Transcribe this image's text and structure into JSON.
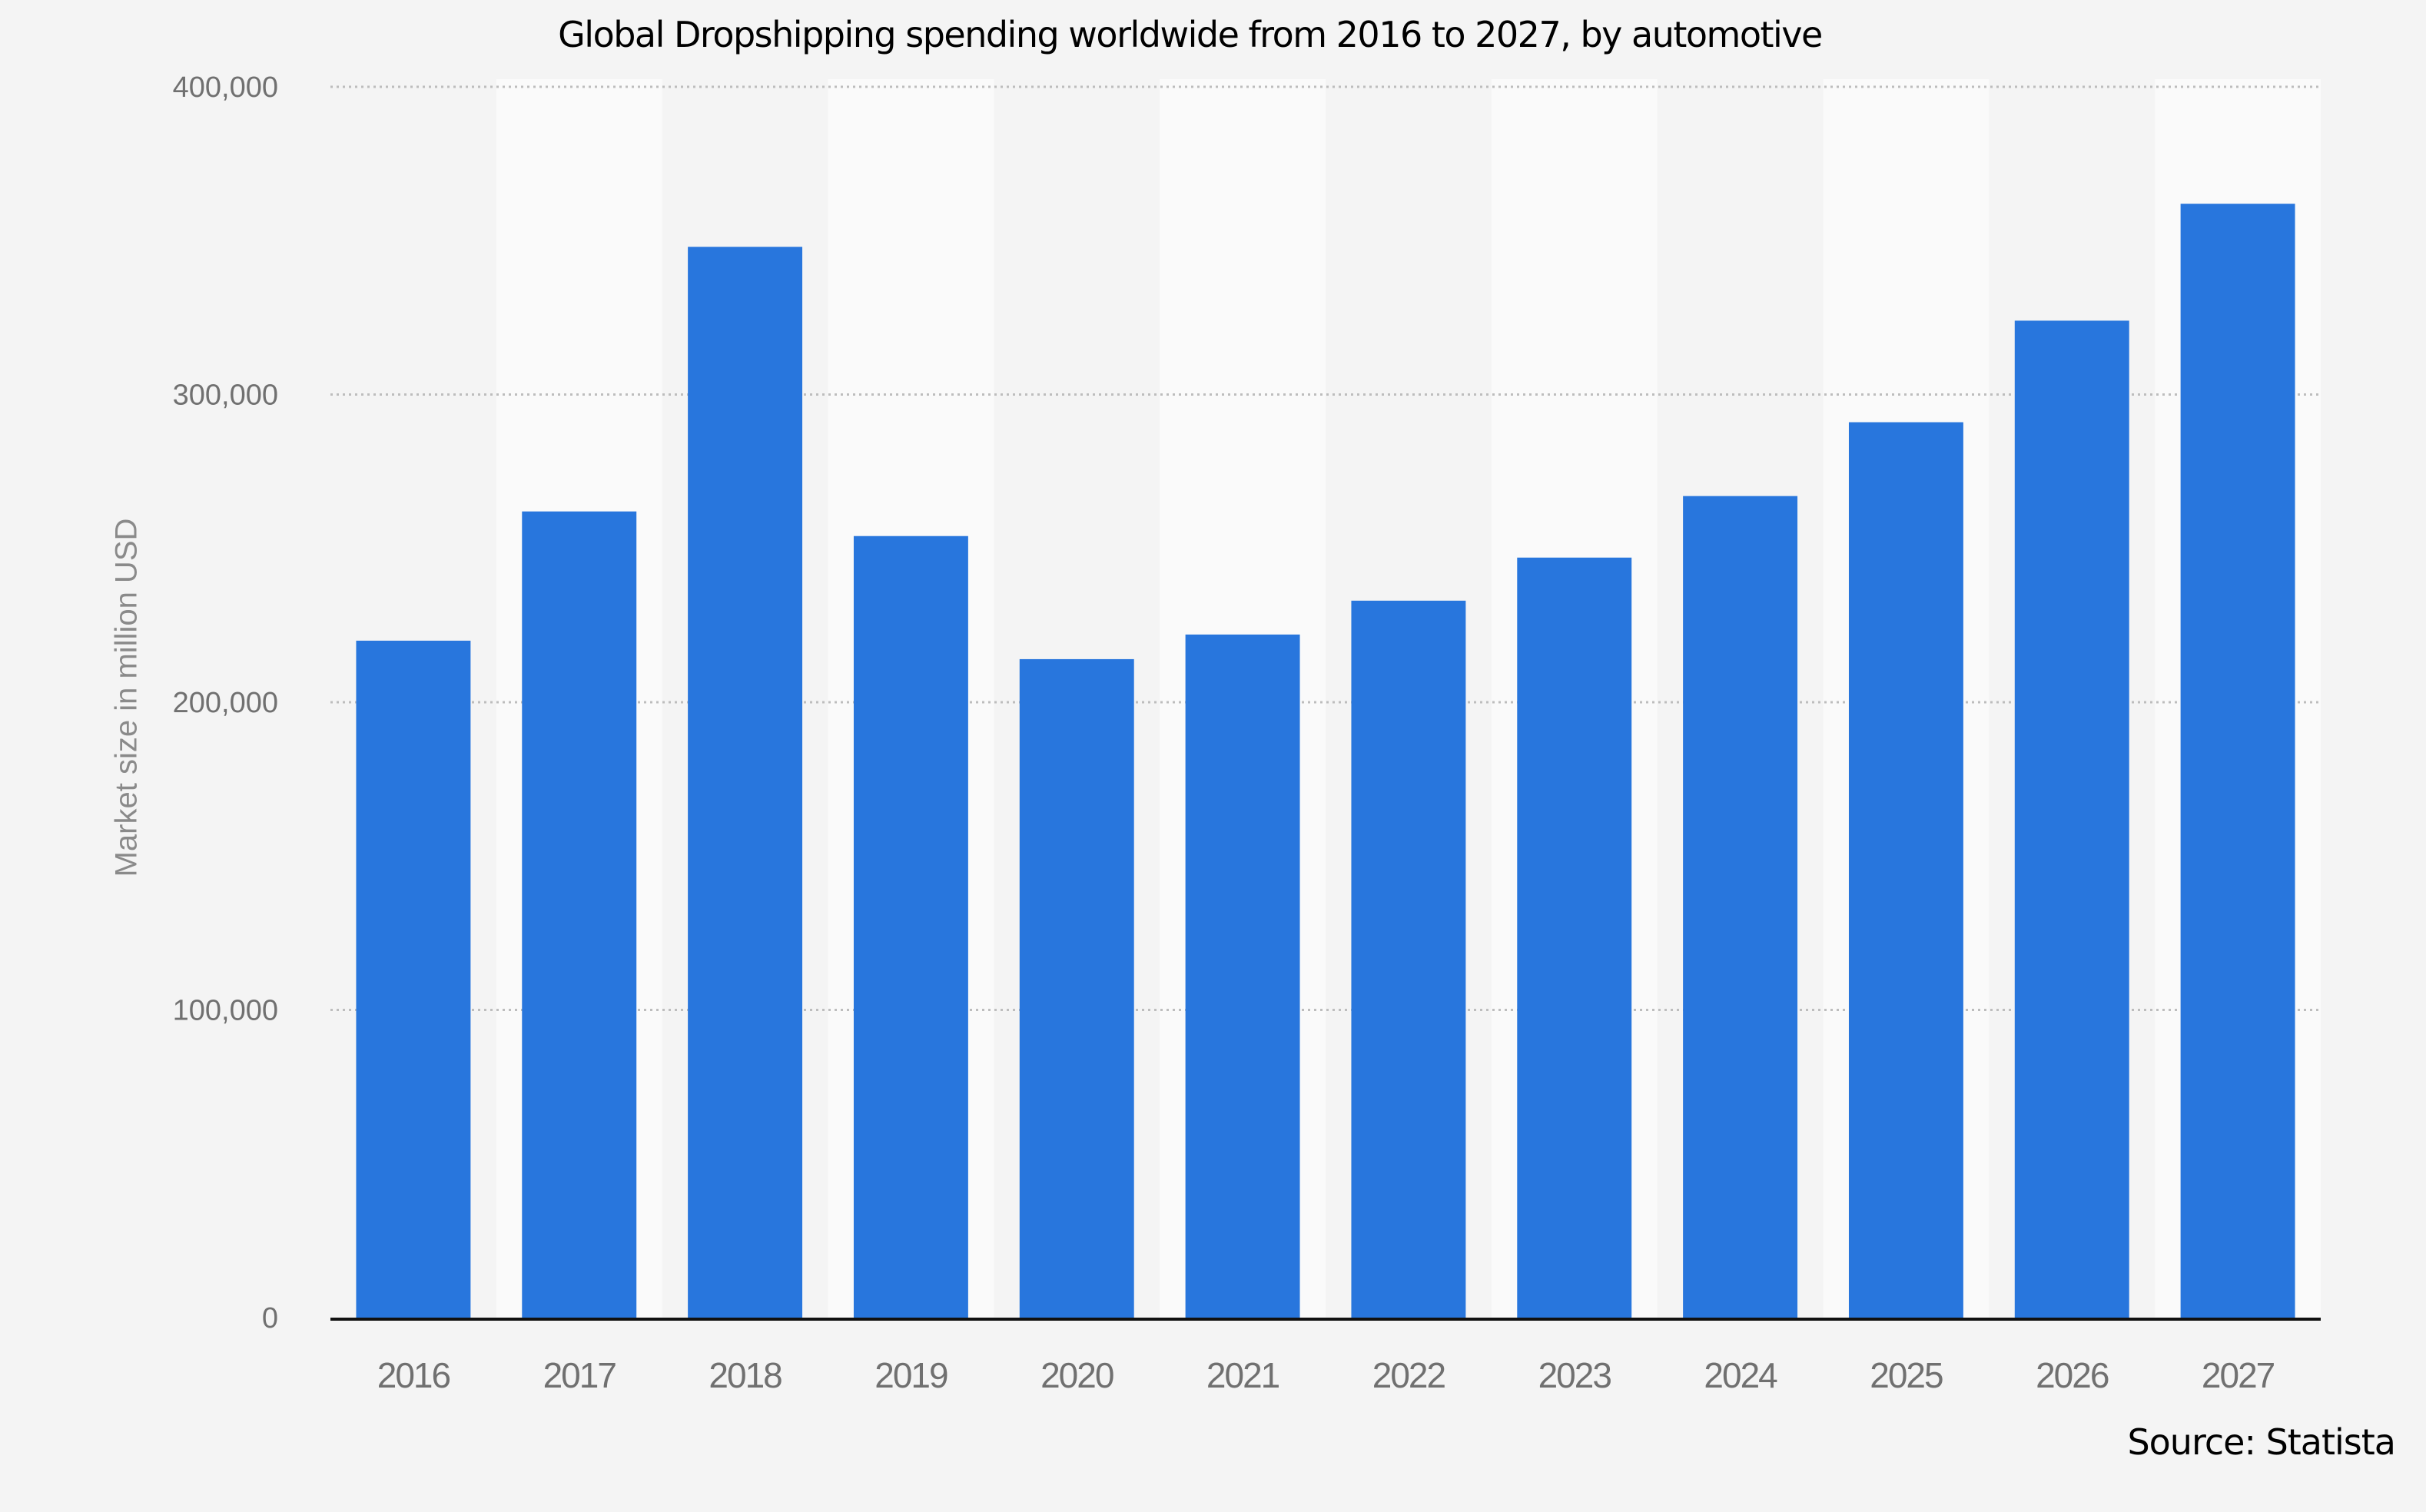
{
  "chart_data": {
    "type": "bar",
    "title": "Global Dropshipping spending worldwide from 2016 to 2027, by automotive",
    "xlabel": "",
    "ylabel": "Market size in million USD",
    "categories": [
      "2016",
      "2017",
      "2018",
      "2019",
      "2020",
      "2021",
      "2022",
      "2023",
      "2024",
      "2025",
      "2026",
      "2027"
    ],
    "values": [
      220000,
      262000,
      348000,
      254000,
      214000,
      222000,
      233000,
      247000,
      267000,
      291000,
      324000,
      362000
    ],
    "ylim": [
      0,
      400000
    ],
    "yticks": [
      0,
      100000,
      200000,
      300000,
      400000
    ],
    "ytick_labels": [
      "0",
      "100,000",
      "200,000",
      "300,000",
      "400,000"
    ],
    "grid": true,
    "legend": null,
    "source": "Source: Statista",
    "colors": {
      "bar": "#2876dd",
      "background": "#f4f4f4",
      "band_alt": "#fafafa",
      "grid": "#bdbdbd",
      "axis": "#111111",
      "tick_text": "#707070",
      "axis_label_text": "#8a8a8a"
    }
  }
}
